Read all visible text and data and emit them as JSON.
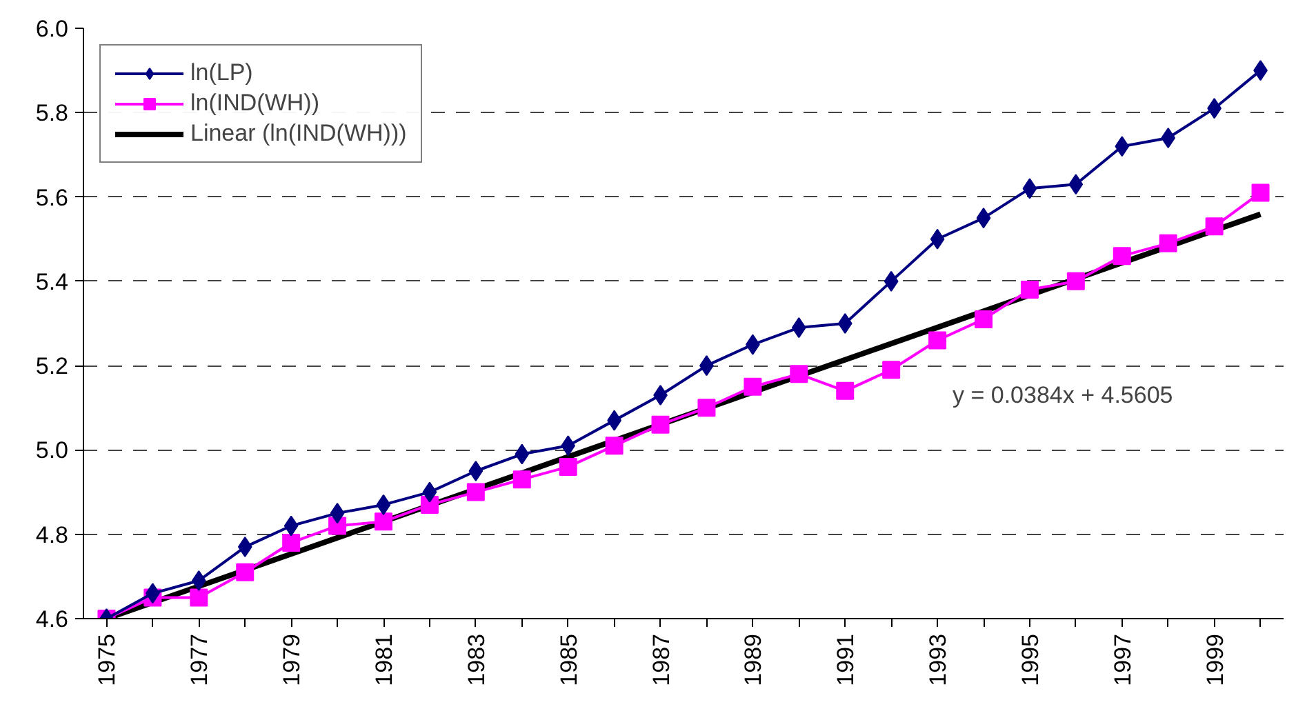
{
  "chart_data": {
    "type": "line",
    "x": [
      1975,
      1976,
      1977,
      1978,
      1979,
      1980,
      1981,
      1982,
      1983,
      1984,
      1985,
      1986,
      1987,
      1988,
      1989,
      1990,
      1991,
      1992,
      1993,
      1994,
      1995,
      1996,
      1997,
      1998,
      1999,
      2000
    ],
    "series": [
      {
        "name": "ln(LP)",
        "color": "#000080",
        "marker": "diamond",
        "values": [
          4.6,
          4.66,
          4.69,
          4.77,
          4.82,
          4.85,
          4.87,
          4.9,
          4.95,
          4.99,
          5.01,
          5.07,
          5.13,
          5.2,
          5.25,
          5.29,
          5.3,
          5.4,
          5.5,
          5.55,
          5.62,
          5.63,
          5.72,
          5.74,
          5.81,
          5.9
        ]
      },
      {
        "name": "ln(IND(WH))",
        "color": "#ff00ff",
        "marker": "square",
        "values": [
          4.6,
          4.65,
          4.65,
          4.71,
          4.78,
          4.82,
          4.83,
          4.87,
          4.9,
          4.93,
          4.96,
          5.01,
          5.06,
          5.1,
          5.15,
          5.18,
          5.14,
          5.19,
          5.26,
          5.31,
          5.38,
          5.4,
          5.46,
          5.49,
          5.53,
          5.61
        ]
      },
      {
        "name": "Linear (ln(IND(WH)))",
        "color": "#000000",
        "marker": "none",
        "type": "line",
        "x": [
          1975,
          2000
        ],
        "values": [
          4.6,
          5.559
        ]
      }
    ],
    "xlim": [
      1974.5,
      2000.5
    ],
    "xticks": [
      1975,
      {
        "value": 1976,
        "label": null
      },
      1977,
      {
        "value": 1978,
        "label": null
      },
      1979,
      {
        "value": 1980,
        "label": null
      },
      1981,
      {
        "value": 1982,
        "label": null
      },
      1983,
      {
        "value": 1984,
        "label": null
      },
      1985,
      {
        "value": 1986,
        "label": null
      },
      1987,
      {
        "value": 1988,
        "label": null
      },
      1989,
      {
        "value": 1990,
        "label": null
      },
      1991,
      {
        "value": 1992,
        "label": null
      },
      1993,
      {
        "value": 1994,
        "label": null
      },
      1995,
      {
        "value": 1996,
        "label": null
      },
      1997,
      {
        "value": 1998,
        "label": null
      },
      1999,
      {
        "value": 2000,
        "label": null
      }
    ],
    "ylim": [
      4.6,
      6.0
    ],
    "yticks": [
      {
        "value": 4.6,
        "label": "4.6"
      },
      {
        "value": 4.8,
        "label": "4.8"
      },
      {
        "value": 5.0,
        "label": "5.0"
      },
      {
        "value": 5.2,
        "label": "5.2"
      },
      {
        "value": 5.4,
        "label": "5.4"
      },
      {
        "value": 5.6,
        "label": "5.6"
      },
      {
        "value": 5.8,
        "label": "5.8"
      },
      {
        "value": 6.0,
        "label": "6.0"
      }
    ],
    "grid": "y",
    "legend": "top left",
    "annotations": [
      "y = 0.0384x + 4.5605"
    ]
  }
}
